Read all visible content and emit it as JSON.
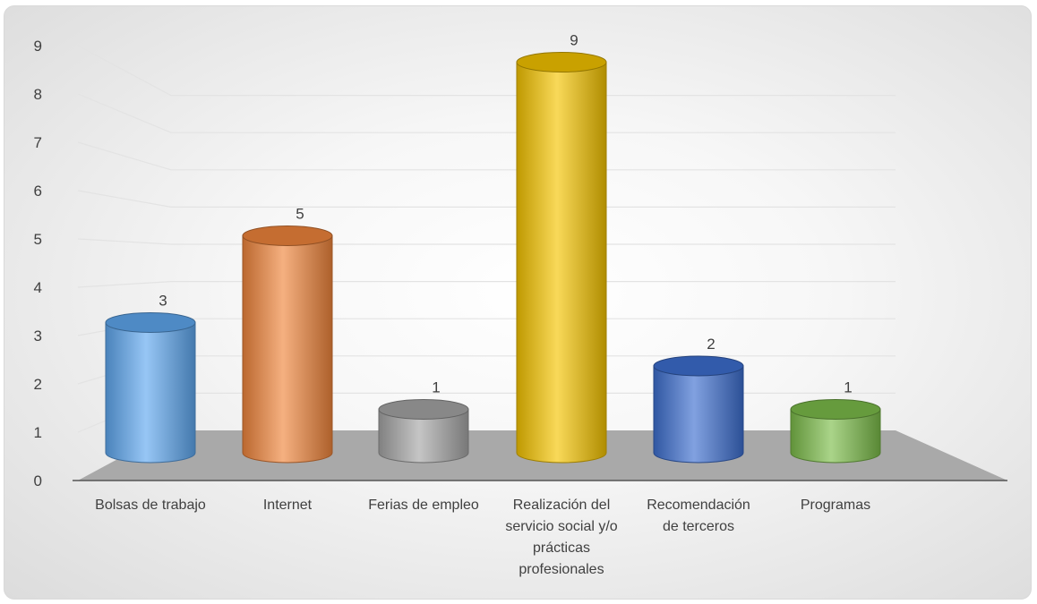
{
  "chart_data": {
    "type": "bar",
    "style": "3d-cylinder",
    "title": "",
    "xlabel": "",
    "ylabel": "",
    "ylim": [
      0,
      9
    ],
    "yticks": [
      "0",
      "1",
      "2",
      "3",
      "4",
      "5",
      "6",
      "7",
      "8",
      "9"
    ],
    "grid": true,
    "legend": "none",
    "categories": [
      [
        "Bolsas de trabajo"
      ],
      [
        "Internet"
      ],
      [
        "Ferias de empleo"
      ],
      [
        "Realización del",
        "servicio social y/o",
        "prácticas",
        "profesionales"
      ],
      [
        "Recomendación",
        "de terceros"
      ],
      [
        "Programas"
      ]
    ],
    "values": [
      3,
      5,
      1,
      9,
      2,
      1
    ],
    "data_labels": [
      "3",
      "5",
      "1",
      "9",
      "2",
      "1"
    ],
    "colors": [
      "#5fa8f0",
      "#f0853c",
      "#a6a6a6",
      "#f5c400",
      "#3d6fd0",
      "#7cbd4a"
    ]
  }
}
